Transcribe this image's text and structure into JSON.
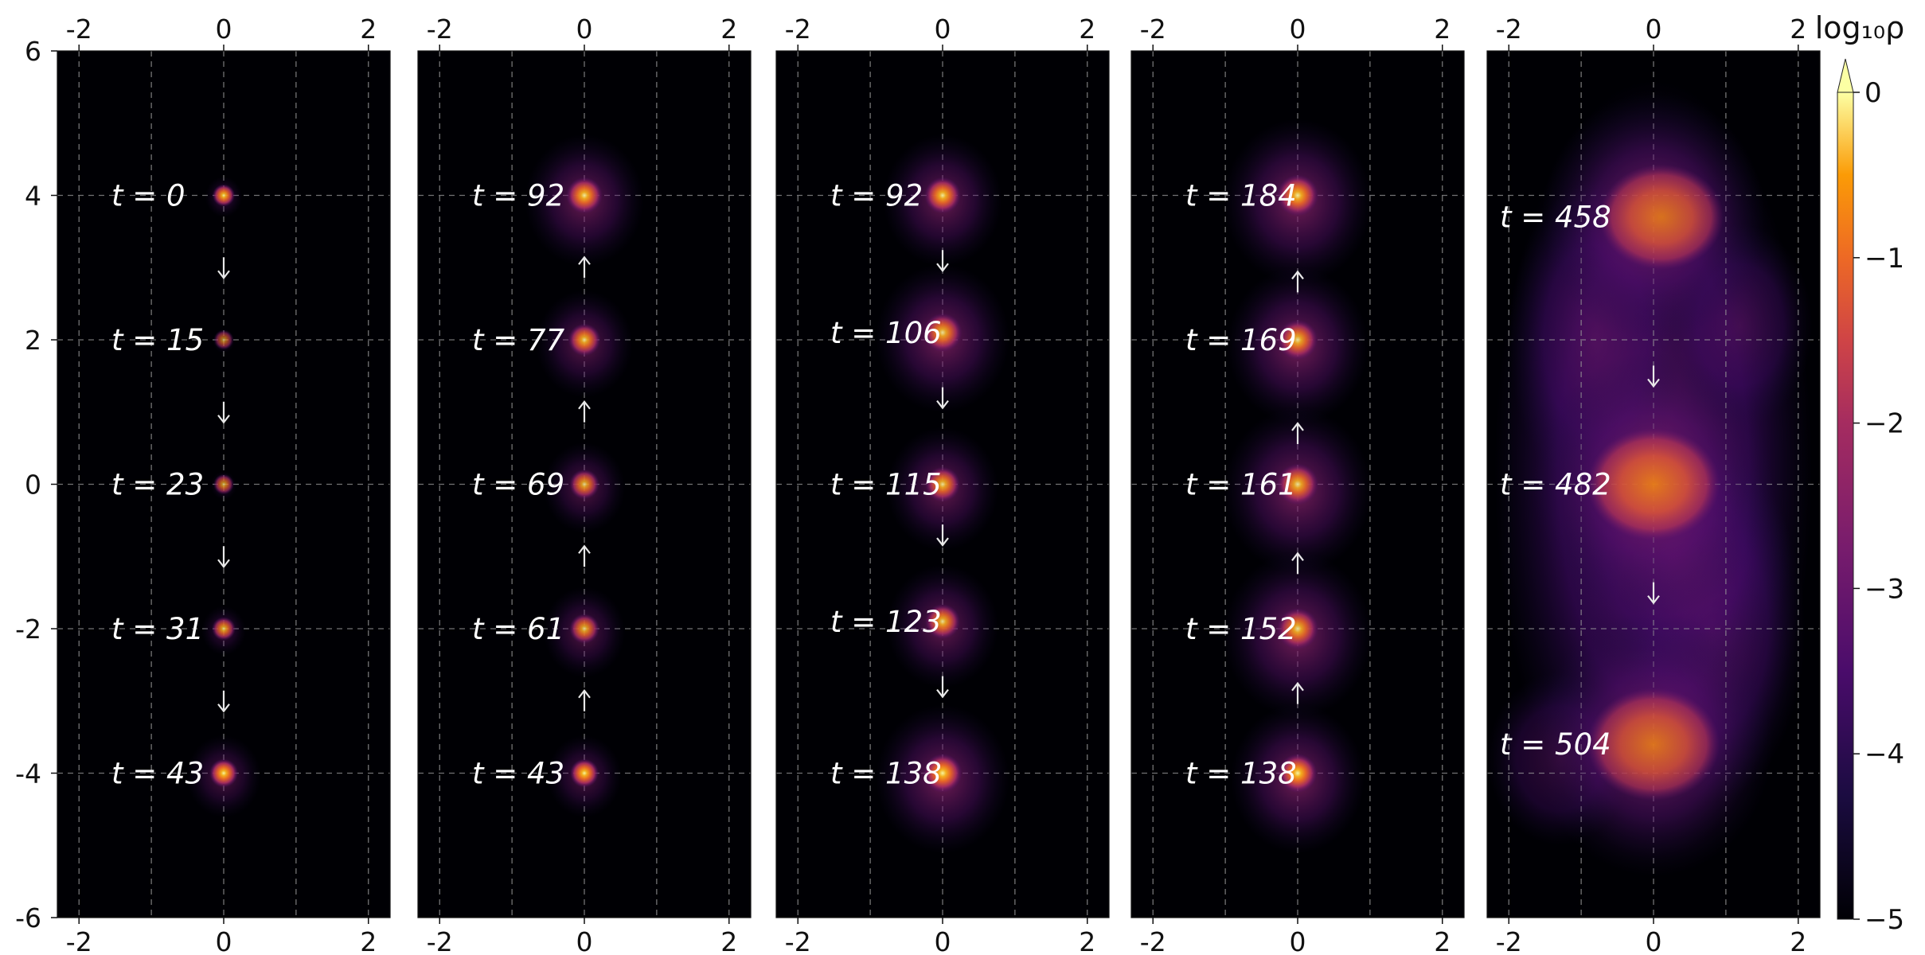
{
  "chart_data": {
    "type": "heatmap",
    "colorbar": {
      "label": "log₁₀ρ",
      "range": [
        -5,
        0
      ],
      "ticks": [
        "0",
        "−1",
        "−2",
        "−3",
        "−4",
        "−5"
      ],
      "extend": "max",
      "colormap": "inferno"
    },
    "axes": {
      "xlim": [
        -2.3,
        2.3
      ],
      "ylim": [
        -6,
        6
      ],
      "xticks": [
        "-2",
        "0",
        "2"
      ],
      "yticks": [
        "6",
        "4",
        "2",
        "0",
        "-2",
        "-4",
        "-6"
      ],
      "grid": true
    },
    "panels": [
      {
        "snapshots": [
          {
            "label": "t = 0",
            "y": 4,
            "strength": 0.9,
            "extent": 0.5
          },
          {
            "label": "t = 15",
            "y": 2,
            "strength": 0.6,
            "extent": 0.3
          },
          {
            "label": "t = 23",
            "y": 0,
            "strength": 0.7,
            "extent": 0.35
          },
          {
            "label": "t = 31",
            "y": -2,
            "strength": 0.8,
            "extent": 0.6
          },
          {
            "label": "t = 43",
            "y": -4,
            "strength": 0.95,
            "extent": 1.0
          }
        ],
        "arrows": [
          {
            "y": 3,
            "dir": "down"
          },
          {
            "y": 1,
            "dir": "down"
          },
          {
            "y": -1,
            "dir": "down"
          },
          {
            "y": -3,
            "dir": "down"
          }
        ]
      },
      {
        "snapshots": [
          {
            "label": "t = 92",
            "y": 4,
            "strength": 0.9,
            "extent": 1.6
          },
          {
            "label": "t = 77",
            "y": 2,
            "strength": 0.85,
            "extent": 1.3
          },
          {
            "label": "t = 69",
            "y": 0,
            "strength": 0.8,
            "extent": 1.1
          },
          {
            "label": "t = 61",
            "y": -2,
            "strength": 0.8,
            "extent": 1.1
          },
          {
            "label": "t = 43",
            "y": -4,
            "strength": 0.95,
            "extent": 1.0
          }
        ],
        "arrows": [
          {
            "y": 3,
            "dir": "up"
          },
          {
            "y": 1,
            "dir": "up"
          },
          {
            "y": -1,
            "dir": "up"
          },
          {
            "y": -3,
            "dir": "up"
          }
        ]
      },
      {
        "snapshots": [
          {
            "label": "t = 92",
            "y": 4,
            "strength": 0.9,
            "extent": 1.6
          },
          {
            "label": "t = 106",
            "y": 2.1,
            "strength": 0.85,
            "extent": 1.8
          },
          {
            "label": "t = 115",
            "y": 0,
            "strength": 0.85,
            "extent": 1.5
          },
          {
            "label": "t = 123",
            "y": -1.9,
            "strength": 0.85,
            "extent": 1.5
          },
          {
            "label": "t = 138",
            "y": -4,
            "strength": 0.95,
            "extent": 1.8
          }
        ],
        "arrows": [
          {
            "y": 3.1,
            "dir": "down"
          },
          {
            "y": 1.2,
            "dir": "down"
          },
          {
            "y": -0.7,
            "dir": "down"
          },
          {
            "y": -2.8,
            "dir": "down"
          }
        ]
      },
      {
        "snapshots": [
          {
            "label": "t = 184",
            "y": 4,
            "strength": 0.9,
            "extent": 2.0
          },
          {
            "label": "t = 169",
            "y": 2,
            "strength": 0.85,
            "extent": 1.9
          },
          {
            "label": "t = 161",
            "y": 0,
            "strength": 0.85,
            "extent": 2.0
          },
          {
            "label": "t = 152",
            "y": -2,
            "strength": 0.85,
            "extent": 2.0
          },
          {
            "label": "t = 138",
            "y": -4,
            "strength": 0.95,
            "extent": 1.8
          }
        ],
        "arrows": [
          {
            "y": 2.8,
            "dir": "up"
          },
          {
            "y": 0.7,
            "dir": "up"
          },
          {
            "y": -1.1,
            "dir": "up"
          },
          {
            "y": -2.9,
            "dir": "up"
          }
        ]
      },
      {
        "snapshots": [
          {
            "label": "t = 458",
            "y": 3.7,
            "strength": 0.75,
            "extent": 3.0
          },
          {
            "label": "t = 482",
            "y": 0,
            "strength": 0.8,
            "extent": 3.2
          },
          {
            "label": "t = 504",
            "y": -3.6,
            "strength": 0.75,
            "extent": 3.2
          }
        ],
        "arrows": [
          {
            "y": 1.5,
            "dir": "down"
          },
          {
            "y": -1.5,
            "dir": "down"
          }
        ],
        "diffuse": true
      }
    ]
  }
}
